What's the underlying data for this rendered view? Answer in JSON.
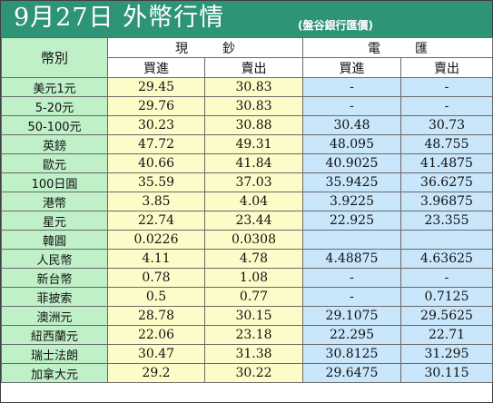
{
  "title": {
    "main": "9月27日 外幣行情",
    "sub": "(盤谷銀行匯價)"
  },
  "table": {
    "header": {
      "label": "幣別",
      "groups": [
        "現鈔",
        "電匯"
      ],
      "cols": [
        "買進",
        "賣出",
        "買進",
        "賣出"
      ]
    },
    "rows": [
      {
        "currency": "美元1元",
        "cash_buy": "29.45",
        "cash_sell": "30.83",
        "tt_buy": "-",
        "tt_sell": "-"
      },
      {
        "currency": "5-20元",
        "cash_buy": "29.76",
        "cash_sell": "30.83",
        "tt_buy": "-",
        "tt_sell": "-"
      },
      {
        "currency": "50-100元",
        "cash_buy": "30.23",
        "cash_sell": "30.88",
        "tt_buy": "30.48",
        "tt_sell": "30.73"
      },
      {
        "currency": "英鎊",
        "cash_buy": "47.72",
        "cash_sell": "49.31",
        "tt_buy": "48.095",
        "tt_sell": "48.755"
      },
      {
        "currency": "歐元",
        "cash_buy": "40.66",
        "cash_sell": "41.84",
        "tt_buy": "40.9025",
        "tt_sell": "41.4875"
      },
      {
        "currency": "100日圓",
        "cash_buy": "35.59",
        "cash_sell": "37.03",
        "tt_buy": "35.9425",
        "tt_sell": "36.6275"
      },
      {
        "currency": "港幣",
        "cash_buy": "3.85",
        "cash_sell": "4.04",
        "tt_buy": "3.9225",
        "tt_sell": "3.96875"
      },
      {
        "currency": "星元",
        "cash_buy": "22.74",
        "cash_sell": "23.44",
        "tt_buy": "22.925",
        "tt_sell": "23.355"
      },
      {
        "currency": "韓圓",
        "cash_buy": "0.0226",
        "cash_sell": "0.0308",
        "tt_buy": "",
        "tt_sell": ""
      },
      {
        "currency": "人民幣",
        "cash_buy": "4.11",
        "cash_sell": "4.78",
        "tt_buy": "4.48875",
        "tt_sell": "4.63625"
      },
      {
        "currency": "新台幣",
        "cash_buy": "0.78",
        "cash_sell": "1.08",
        "tt_buy": "-",
        "tt_sell": "-"
      },
      {
        "currency": "菲披索",
        "cash_buy": "0.5",
        "cash_sell": "0.77",
        "tt_buy": "-",
        "tt_sell": "0.7125"
      },
      {
        "currency": "澳洲元",
        "cash_buy": "28.78",
        "cash_sell": "30.15",
        "tt_buy": "29.1075",
        "tt_sell": "29.5625"
      },
      {
        "currency": "紐西蘭元",
        "cash_buy": "22.06",
        "cash_sell": "23.18",
        "tt_buy": "22.295",
        "tt_sell": "22.71"
      },
      {
        "currency": "瑞士法朗",
        "cash_buy": "30.47",
        "cash_sell": "31.38",
        "tt_buy": "30.8125",
        "tt_sell": "31.295"
      },
      {
        "currency": "加拿大元",
        "cash_buy": "29.2",
        "cash_sell": "30.22",
        "tt_buy": "29.6475",
        "tt_sell": "30.115"
      }
    ]
  }
}
